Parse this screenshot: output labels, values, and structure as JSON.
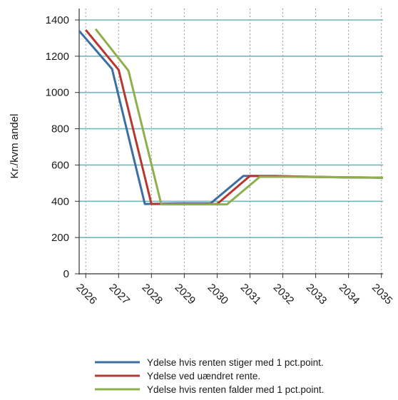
{
  "chart_data": {
    "type": "line",
    "ylabel": "Kr./kvm andel",
    "xlabel": "",
    "title": "",
    "x_ticks": [
      "2026",
      "2027",
      "2028",
      "2029",
      "2030",
      "2031",
      "2032",
      "2033",
      "2034",
      "2035"
    ],
    "y_ticks": [
      0,
      200,
      400,
      600,
      800,
      1000,
      1200,
      1400
    ],
    "xlim": [
      2025.8,
      2035.05
    ],
    "ylim": [
      0,
      1400
    ],
    "grid": {
      "horizontal": true,
      "vertical": "dotted"
    },
    "legend_position": "bottom",
    "series": [
      {
        "name": "Ydelse hvis renten stiger med 1 pct.point.",
        "color": "#3a6ea5",
        "x": [
          2025.8,
          2026.8,
          2027.8,
          2028.8,
          2029.8,
          2030.8,
          2031.8,
          2032.8,
          2033.8,
          2035.05
        ],
        "values": [
          1340,
          1130,
          385,
          388,
          388,
          540,
          540,
          535,
          532,
          530
        ]
      },
      {
        "name": "Ydelse ved uændret rente.",
        "color": "#b7372f",
        "x": [
          2026.0,
          2027.0,
          2028.0,
          2029.0,
          2030.0,
          2031.0,
          2032.0,
          2033.0,
          2034.0,
          2035.05
        ],
        "values": [
          1345,
          1125,
          385,
          385,
          385,
          540,
          537,
          535,
          532,
          530
        ]
      },
      {
        "name": "Ydelse hvis renten falder med 1 pct.point.",
        "color": "#8db04c",
        "x": [
          2026.3,
          2027.3,
          2028.3,
          2029.3,
          2030.3,
          2031.3,
          2032.3,
          2033.3,
          2034.3,
          2035.05
        ],
        "values": [
          1350,
          1120,
          383,
          383,
          383,
          535,
          535,
          533,
          532,
          530
        ]
      }
    ]
  }
}
